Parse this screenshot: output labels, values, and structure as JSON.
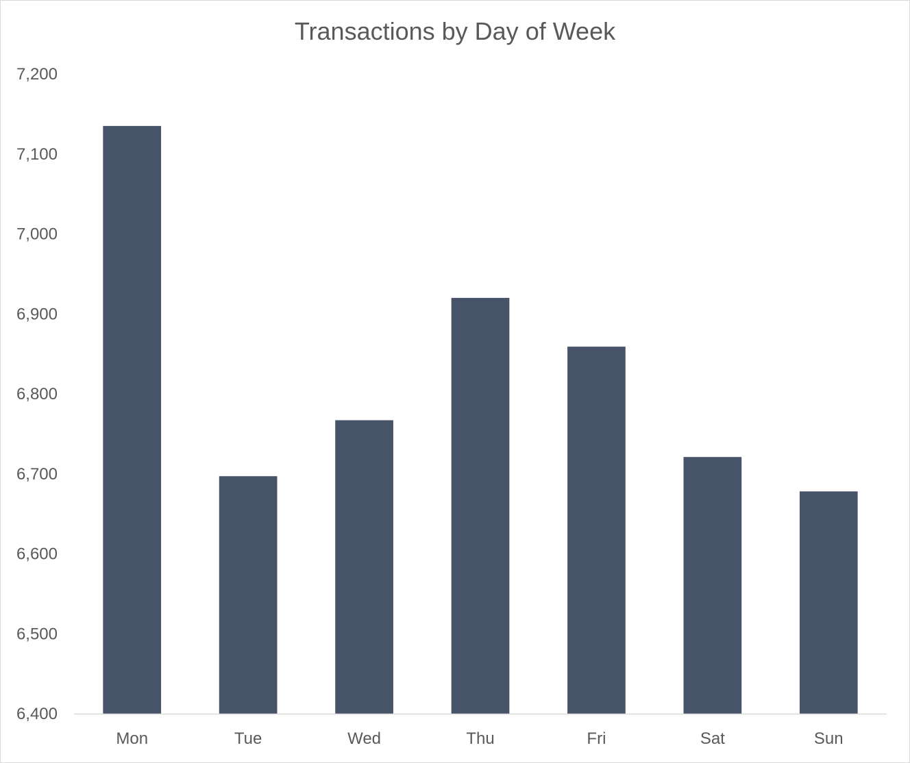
{
  "chart_data": {
    "type": "bar",
    "title": "Transactions by Day of Week",
    "xlabel": "",
    "ylabel": "",
    "categories": [
      "Mon",
      "Tue",
      "Wed",
      "Thu",
      "Fri",
      "Sat",
      "Sun"
    ],
    "values": [
      7135,
      6697,
      6767,
      6920,
      6859,
      6721,
      6678
    ],
    "ylim": [
      6400,
      7200
    ],
    "yticks": [
      6400,
      6500,
      6600,
      6700,
      6800,
      6900,
      7000,
      7100,
      7200
    ],
    "ytick_labels": [
      "6,400",
      "6,500",
      "6,600",
      "6,700",
      "6,800",
      "6,900",
      "7,000",
      "7,100",
      "7,200"
    ],
    "grid": false,
    "legend": "none",
    "bar_color": "#475368"
  }
}
